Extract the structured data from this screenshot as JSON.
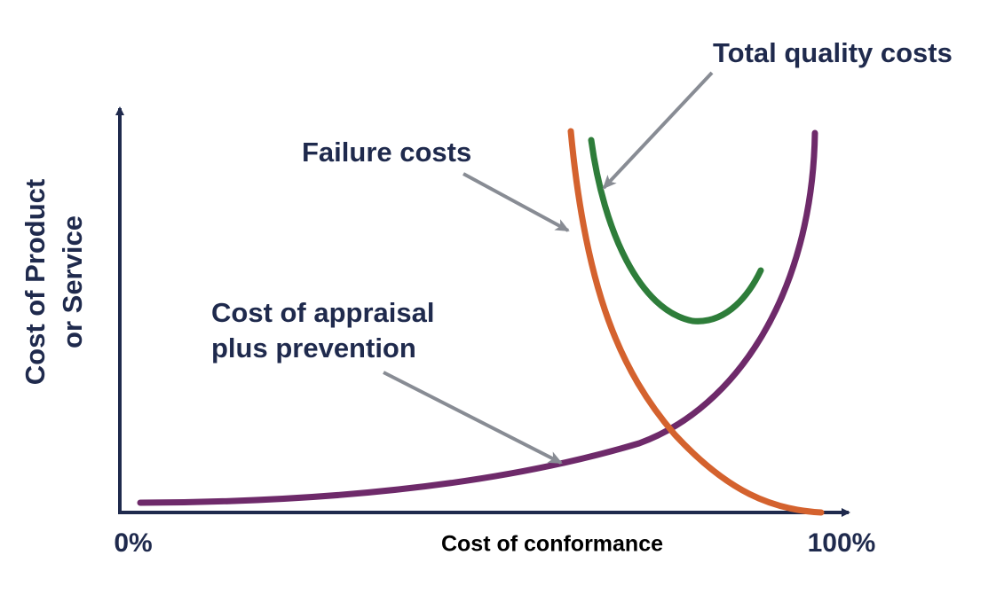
{
  "labels": {
    "total_quality_costs": "Total quality costs",
    "failure_costs": "Failure costs",
    "appraisal": [
      "Cost of appraisal",
      "plus prevention"
    ]
  },
  "axes": {
    "y_label": [
      "Cost of Product",
      "or Service"
    ],
    "x_label": "Cost of conformance",
    "x_start": "0%",
    "x_end": "100%"
  }
}
